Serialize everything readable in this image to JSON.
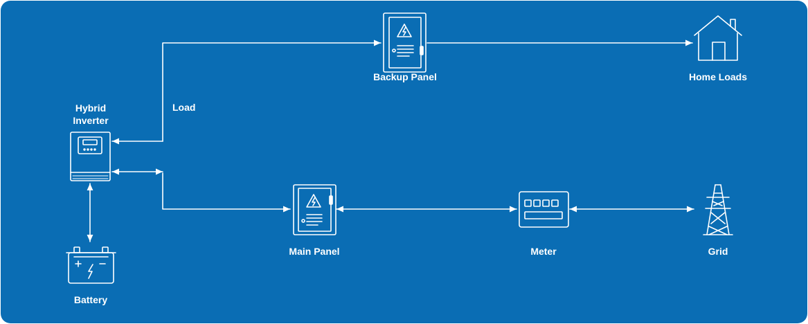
{
  "colors": {
    "background": "#0a6db4",
    "foreground": "#ffffff"
  },
  "nodes": {
    "inverter": {
      "label": "Hybrid Inverter",
      "icon": "inverter-icon"
    },
    "battery": {
      "label": "Battery",
      "icon": "battery-icon"
    },
    "backup_panel": {
      "label": "Backup Panel",
      "icon": "electrical-panel-icon"
    },
    "home_loads": {
      "label": "Home Loads",
      "icon": "house-icon"
    },
    "main_panel": {
      "label": "Main Panel",
      "icon": "electrical-panel-icon"
    },
    "meter": {
      "label": "Meter",
      "icon": "meter-icon"
    },
    "grid": {
      "label": "Grid",
      "icon": "transmission-tower-icon"
    }
  },
  "edge_labels": {
    "load": "Load"
  },
  "edges": [
    {
      "from": "inverter",
      "to": "backup_panel",
      "direction": "forward"
    },
    {
      "from": "backup_panel",
      "to": "home_loads",
      "direction": "forward"
    },
    {
      "from": "inverter",
      "to": "battery",
      "direction": "both"
    },
    {
      "from": "inverter",
      "to": "main_panel",
      "direction": "both"
    },
    {
      "from": "main_panel",
      "to": "meter",
      "direction": "both"
    },
    {
      "from": "meter",
      "to": "grid",
      "direction": "both"
    }
  ]
}
